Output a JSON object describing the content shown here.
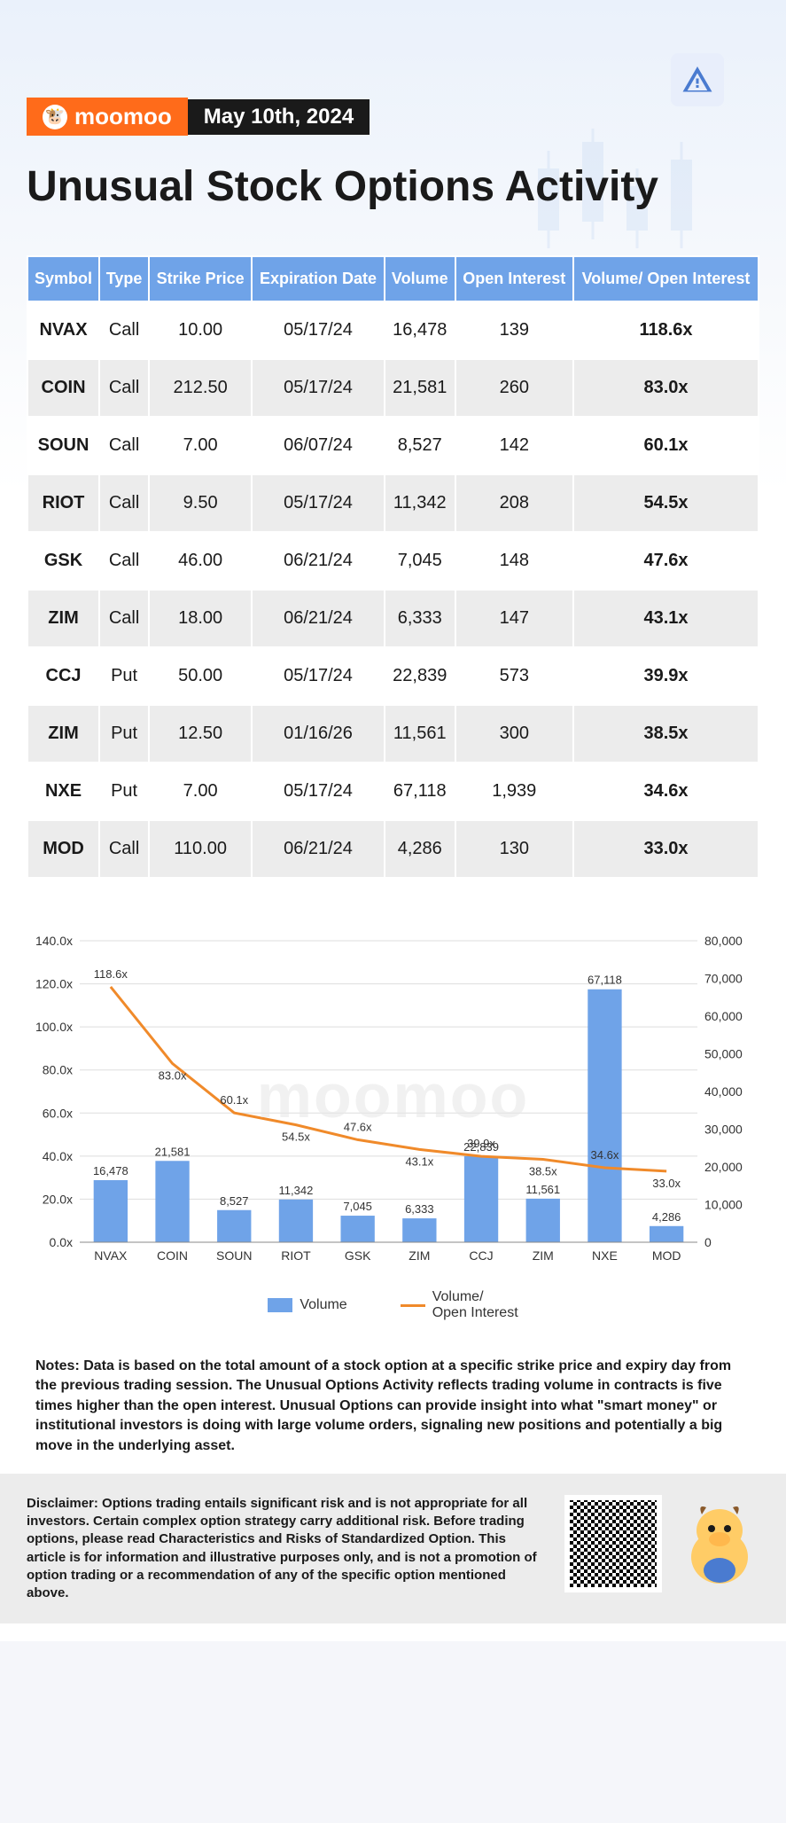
{
  "brand": "moomoo",
  "date": "May 10th, 2024",
  "title": "Unusual Stock Options Activity",
  "table": {
    "columns": [
      "Symbol",
      "Type",
      "Strike Price",
      "Expiration Date",
      "Volume",
      "Open Interest",
      "Volume/ Open Interest"
    ],
    "rows": [
      {
        "symbol": "NVAX",
        "type": "Call",
        "strike": "10.00",
        "exp": "05/17/24",
        "volume": "16,478",
        "oi": "139",
        "ratio": "118.6x"
      },
      {
        "symbol": "COIN",
        "type": "Call",
        "strike": "212.50",
        "exp": "05/17/24",
        "volume": "21,581",
        "oi": "260",
        "ratio": "83.0x"
      },
      {
        "symbol": "SOUN",
        "type": "Call",
        "strike": "7.00",
        "exp": "06/07/24",
        "volume": "8,527",
        "oi": "142",
        "ratio": "60.1x"
      },
      {
        "symbol": "RIOT",
        "type": "Call",
        "strike": "9.50",
        "exp": "05/17/24",
        "volume": "11,342",
        "oi": "208",
        "ratio": "54.5x"
      },
      {
        "symbol": "GSK",
        "type": "Call",
        "strike": "46.00",
        "exp": "06/21/24",
        "volume": "7,045",
        "oi": "148",
        "ratio": "47.6x"
      },
      {
        "symbol": "ZIM",
        "type": "Call",
        "strike": "18.00",
        "exp": "06/21/24",
        "volume": "6,333",
        "oi": "147",
        "ratio": "43.1x"
      },
      {
        "symbol": "CCJ",
        "type": "Put",
        "strike": "50.00",
        "exp": "05/17/24",
        "volume": "22,839",
        "oi": "573",
        "ratio": "39.9x"
      },
      {
        "symbol": "ZIM",
        "type": "Put",
        "strike": "12.50",
        "exp": "01/16/26",
        "volume": "11,561",
        "oi": "300",
        "ratio": "38.5x"
      },
      {
        "symbol": "NXE",
        "type": "Put",
        "strike": "7.00",
        "exp": "05/17/24",
        "volume": "67,118",
        "oi": "1,939",
        "ratio": "34.6x"
      },
      {
        "symbol": "MOD",
        "type": "Call",
        "strike": "110.00",
        "exp": "06/21/24",
        "volume": "4,286",
        "oi": "130",
        "ratio": "33.0x"
      }
    ]
  },
  "chart": {
    "type": "combo_bar_line",
    "categories": [
      "NVAX",
      "COIN",
      "SOUN",
      "RIOT",
      "GSK",
      "ZIM",
      "CCJ",
      "ZIM",
      "NXE",
      "MOD"
    ],
    "volume_values": [
      16478,
      21581,
      8527,
      11342,
      7045,
      6333,
      22839,
      11561,
      67118,
      4286
    ],
    "volume_labels": [
      "16,478",
      "21,581",
      "8,527",
      "11,342",
      "7,045",
      "6,333",
      "22,839",
      "11,561",
      "67,118",
      "4,286"
    ],
    "ratio_values": [
      118.6,
      83.0,
      60.1,
      54.5,
      47.6,
      43.1,
      39.9,
      38.5,
      34.6,
      33.0
    ],
    "ratio_labels": [
      "118.6x",
      "83.0x",
      "60.1x",
      "54.5x",
      "47.6x",
      "43.1x",
      "39.9x",
      "38.5x",
      "34.6x",
      "33.0x"
    ],
    "left_axis": {
      "min": 0,
      "max": 140,
      "step": 20,
      "label_suffix": ".0x"
    },
    "right_axis": {
      "min": 0,
      "max": 80000,
      "step": 10000
    },
    "bar_color": "#6fa3e8",
    "line_color": "#f08a2a",
    "grid_color": "#dddddd",
    "text_color": "#333333",
    "background": "#ffffff",
    "legend": {
      "bar": "Volume",
      "line": "Volume/\nOpen Interest"
    }
  },
  "notes": "Notes: Data is based on the total amount of a stock option at a specific strike price and expiry day from the previous trading session. The Unusual Options Activity reflects trading volume in contracts is five times higher than the open interest. Unusual Options can provide insight into what \"smart money\" or institutional investors is doing with large volume orders, signaling new positions and potentially a big move in the underlying asset.",
  "disclaimer": "Disclaimer: Options trading entails significant risk and is not appropriate for all investors. Certain complex option strategy carry additional risk. Before trading options, please read Characteristics and Risks of Standardized Option. This article is for information and illustrative purposes only, and is not a promotion of option trading or a recommendation of any of the specific option mentioned above.",
  "watermark": "moomoo"
}
